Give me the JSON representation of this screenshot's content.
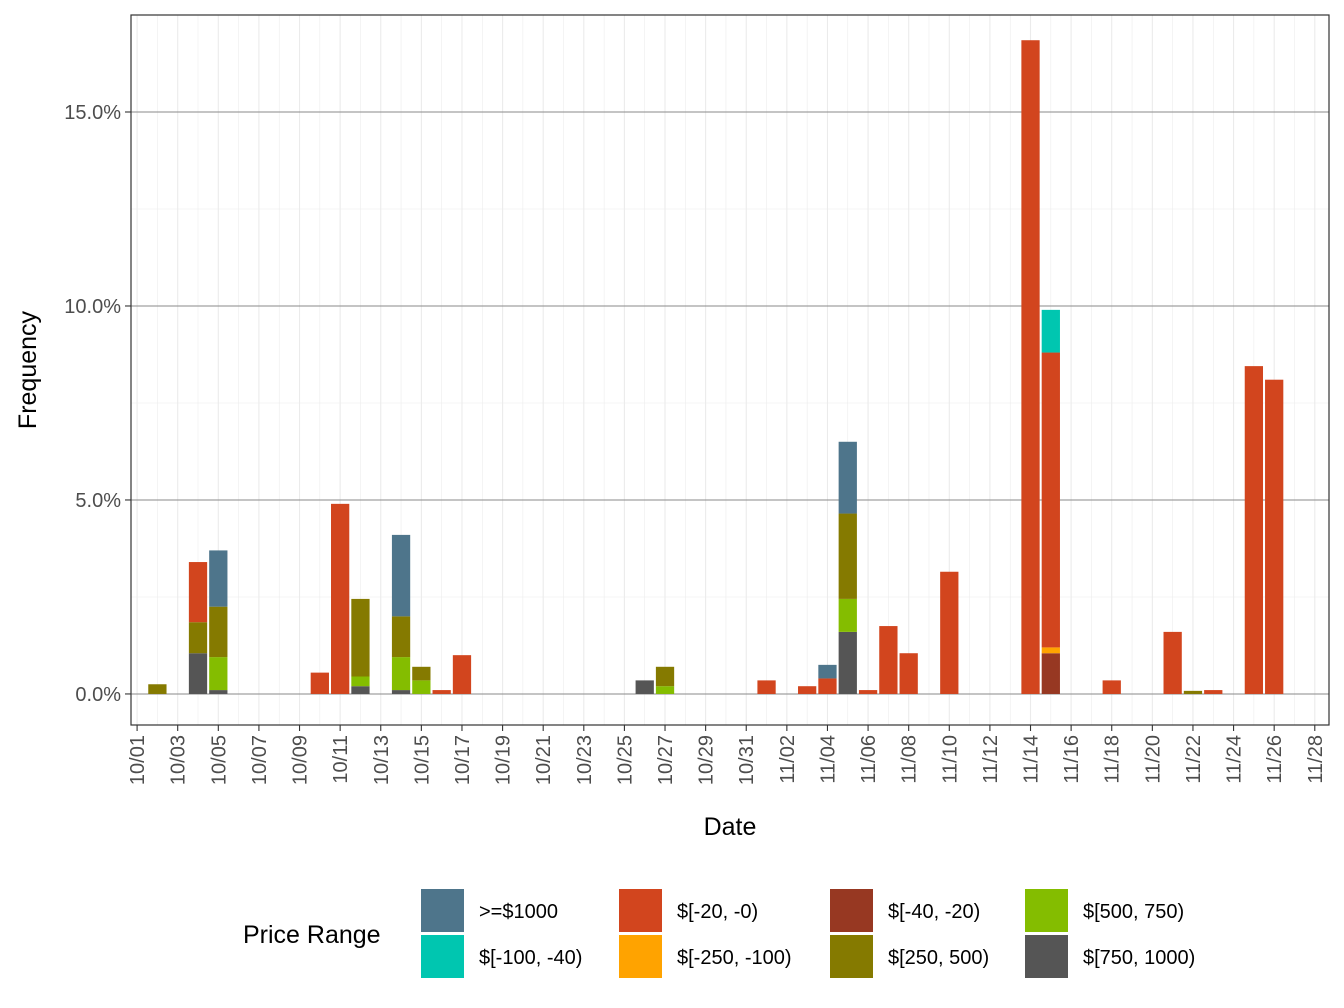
{
  "chart_data": {
    "type": "bar",
    "stacked": true,
    "xlabel": "Date",
    "ylabel": "Frequency",
    "ylim": [
      -0.8,
      17.5
    ],
    "y_ticks": [
      0,
      5,
      10,
      15
    ],
    "y_tick_labels": [
      "0.0%",
      "5.0%",
      "10.0%",
      "15.0%"
    ],
    "x_range": [
      0.7,
      59.7
    ],
    "x_tick_labels": [
      "10/01",
      "10/03",
      "10/05",
      "10/07",
      "10/09",
      "10/11",
      "10/13",
      "10/15",
      "10/17",
      "10/19",
      "10/21",
      "10/23",
      "10/25",
      "10/27",
      "10/29",
      "10/31",
      "11/02",
      "11/04",
      "11/06",
      "11/08",
      "11/10",
      "11/12",
      "11/14",
      "11/16",
      "11/18",
      "11/20",
      "11/22",
      "11/24",
      "11/26",
      "11/28"
    ],
    "categories": [
      "10/02",
      "10/04",
      "10/05",
      "10/10",
      "10/11",
      "10/12",
      "10/14",
      "10/15",
      "10/16",
      "10/17",
      "10/26",
      "10/27",
      "11/01",
      "11/03",
      "11/04",
      "11/05",
      "11/06",
      "11/07",
      "11/08",
      "11/10",
      "11/14",
      "11/15",
      "11/18",
      "11/21",
      "11/22",
      "11/23",
      "11/25",
      "11/26"
    ],
    "x_index": [
      2,
      4,
      5,
      10,
      11,
      12,
      14,
      15,
      16,
      17,
      26,
      27,
      32,
      34,
      35,
      36,
      37,
      38,
      39,
      41,
      45,
      46,
      49,
      52,
      53,
      54,
      56,
      57
    ],
    "series": [
      {
        "name": "$[750, 1000)",
        "color": "#555555",
        "values": [
          0,
          1.05,
          0.1,
          0,
          0,
          0.2,
          0.1,
          0,
          0,
          0,
          0.35,
          0,
          0,
          0,
          0,
          1.6,
          0,
          0,
          0,
          0,
          0,
          0,
          0,
          0,
          0,
          0,
          0,
          0
        ]
      },
      {
        "name": "$[500, 750)",
        "color": "#84bd00",
        "values": [
          0,
          0,
          0.85,
          0,
          0,
          0.25,
          0.85,
          0.35,
          0,
          0,
          0,
          0.2,
          0,
          0,
          0,
          0.85,
          0,
          0,
          0,
          0,
          0,
          0,
          0,
          0,
          0,
          0,
          0,
          0
        ]
      },
      {
        "name": "$[250, 500)",
        "color": "#857a00",
        "values": [
          0.25,
          0.8,
          1.3,
          0,
          0,
          2.0,
          1.05,
          0.35,
          0,
          0,
          0,
          0.5,
          0,
          0,
          0,
          2.2,
          0,
          0,
          0,
          0,
          0,
          0,
          0,
          0,
          0.08,
          0,
          0,
          0
        ]
      },
      {
        "name": "$[-40, -20)",
        "color": "#973822",
        "values": [
          0,
          0,
          0,
          0,
          0,
          0,
          0,
          0,
          0,
          0,
          0,
          0,
          0,
          0,
          0,
          0,
          0,
          0,
          0,
          0,
          0,
          1.05,
          0,
          0,
          0,
          0,
          0,
          0
        ]
      },
      {
        "name": "$[-250, -100)",
        "color": "#ffa300",
        "values": [
          0,
          0,
          0,
          0,
          0,
          0,
          0,
          0,
          0,
          0,
          0,
          0,
          0,
          0,
          0,
          0,
          0,
          0,
          0,
          0,
          0,
          0.15,
          0,
          0,
          0,
          0,
          0,
          0
        ]
      },
      {
        "name": "$[-20, -0)",
        "color": "#d2451e",
        "values": [
          0,
          1.55,
          0,
          0.55,
          4.9,
          0,
          0,
          0,
          0.1,
          1.0,
          0,
          0,
          0.35,
          0.2,
          0.4,
          0,
          0.1,
          1.75,
          1.05,
          3.15,
          16.85,
          7.6,
          0.35,
          1.6,
          0,
          0.1,
          8.45,
          8.1
        ]
      },
      {
        "name": "$[-100, -40)",
        "color": "#00c6b0",
        "values": [
          0,
          0,
          0,
          0,
          0,
          0,
          0,
          0,
          0,
          0,
          0,
          0,
          0,
          0,
          0,
          0,
          0,
          0,
          0,
          0,
          0,
          1.1,
          0,
          0,
          0,
          0,
          0,
          0
        ]
      },
      {
        "name": ">=$1000",
        "color": "#4e758b",
        "values": [
          0,
          0,
          1.45,
          0,
          0,
          0,
          2.1,
          0,
          0,
          0,
          0,
          0,
          0,
          0,
          0.35,
          1.85,
          0,
          0,
          0,
          0,
          0,
          0,
          0,
          0,
          0,
          0,
          0,
          0
        ]
      }
    ],
    "legend": {
      "title": "Price Range",
      "position": "bottom",
      "entries": [
        {
          "label": ">=$1000",
          "color": "#4e758b"
        },
        {
          "label": "$[-100, -40)",
          "color": "#00c6b0"
        },
        {
          "label": "$[-20, -0)",
          "color": "#d2451e"
        },
        {
          "label": "$[-250, -100)",
          "color": "#ffa300"
        },
        {
          "label": "$[-40, -20)",
          "color": "#973822"
        },
        {
          "label": "$[250, 500)",
          "color": "#857a00"
        },
        {
          "label": "$[500, 750)",
          "color": "#84bd00"
        },
        {
          "label": "$[750, 1000)",
          "color": "#555555"
        }
      ]
    },
    "grid": true
  }
}
